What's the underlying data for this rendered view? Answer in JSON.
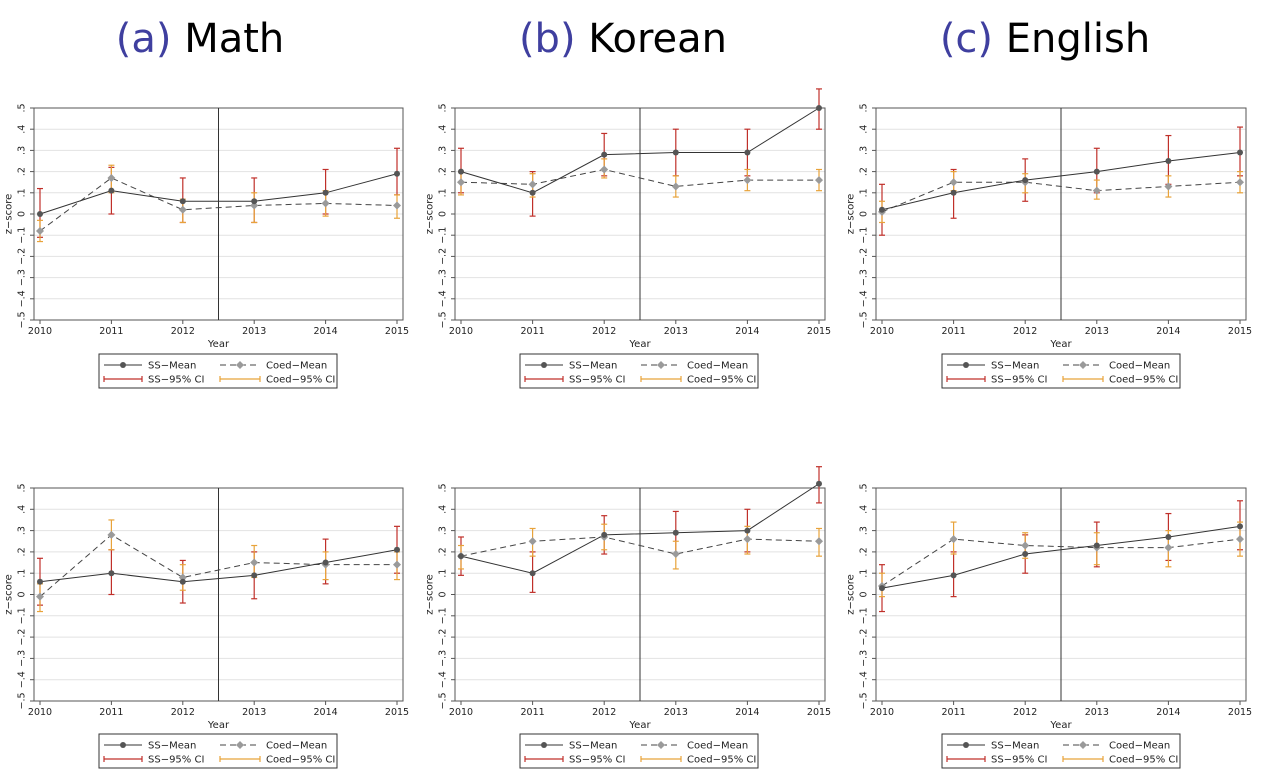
{
  "titles": [
    {
      "prefix": "(a)",
      "subject": "Math"
    },
    {
      "prefix": "(b)",
      "subject": "Korean"
    },
    {
      "prefix": "(c)",
      "subject": "English"
    }
  ],
  "colors": {
    "ss_mean": "#555555",
    "coed_mean": "#9a9a9a",
    "ss_ci": "#c0302a",
    "coed_ci": "#e8a33a",
    "grid": "#e2e2e2",
    "frame": "#555555"
  },
  "chart_data": [
    {
      "type": "line",
      "subject": "Math",
      "row": 1,
      "xlabel": "Year",
      "ylabel": "z−score",
      "x": [
        2010,
        2011,
        2012,
        2013,
        2014,
        2015
      ],
      "xlim": [
        2010,
        2015
      ],
      "ylim": [
        -0.5,
        0.5
      ],
      "yticks": [
        "−.5",
        "−.4",
        "−.3",
        "−.2",
        "−.1",
        "0",
        ".1",
        ".2",
        ".3",
        ".4",
        ".5"
      ],
      "grid": true,
      "cutoff_x": 2012.5,
      "legend_position": "bottom",
      "series": [
        {
          "name": "SS−Mean",
          "values": [
            0.0,
            0.11,
            0.06,
            0.06,
            0.1,
            0.19
          ],
          "ci_low": [
            -0.11,
            0.0,
            -0.04,
            -0.04,
            0.0,
            0.09
          ],
          "ci_high": [
            0.12,
            0.22,
            0.17,
            0.17,
            0.21,
            0.31
          ]
        },
        {
          "name": "Coed−Mean",
          "values": [
            -0.08,
            0.17,
            0.02,
            0.04,
            0.05,
            0.04
          ],
          "ci_low": [
            -0.13,
            0.1,
            -0.04,
            -0.04,
            -0.01,
            -0.02
          ],
          "ci_high": [
            -0.03,
            0.23,
            0.07,
            0.1,
            0.11,
            0.09
          ]
        }
      ],
      "legend": {
        "ss_mean": "SS−Mean",
        "coed_mean": "Coed−Mean",
        "ss_ci": "SS−95% CI",
        "coed_ci": "Coed−95% CI"
      }
    },
    {
      "type": "line",
      "subject": "Korean",
      "row": 1,
      "xlabel": "Year",
      "ylabel": "z−score",
      "x": [
        2010,
        2011,
        2012,
        2013,
        2014,
        2015
      ],
      "xlim": [
        2010,
        2015
      ],
      "ylim": [
        -0.5,
        0.5
      ],
      "yticks": [
        "−.5",
        "−.4",
        "−.3",
        "−.2",
        "−.1",
        "0",
        ".1",
        ".2",
        ".3",
        ".4",
        ".5"
      ],
      "grid": true,
      "cutoff_x": 2012.5,
      "legend_position": "bottom",
      "series": [
        {
          "name": "SS−Mean",
          "values": [
            0.2,
            0.1,
            0.28,
            0.29,
            0.29,
            0.5
          ],
          "ci_low": [
            0.1,
            -0.01,
            0.18,
            0.18,
            0.18,
            0.4
          ],
          "ci_high": [
            0.31,
            0.2,
            0.38,
            0.4,
            0.4,
            0.59
          ]
        },
        {
          "name": "Coed−Mean",
          "values": [
            0.15,
            0.14,
            0.21,
            0.13,
            0.16,
            0.16
          ],
          "ci_low": [
            0.09,
            0.08,
            0.17,
            0.08,
            0.11,
            0.11
          ],
          "ci_high": [
            0.2,
            0.19,
            0.26,
            0.18,
            0.21,
            0.21
          ]
        }
      ],
      "legend": {
        "ss_mean": "SS−Mean",
        "coed_mean": "Coed−Mean",
        "ss_ci": "SS−95% CI",
        "coed_ci": "Coed−95% CI"
      }
    },
    {
      "type": "line",
      "subject": "English",
      "row": 1,
      "xlabel": "Year",
      "ylabel": "z−score",
      "x": [
        2010,
        2011,
        2012,
        2013,
        2014,
        2015
      ],
      "xlim": [
        2010,
        2015
      ],
      "ylim": [
        -0.5,
        0.5
      ],
      "yticks": [
        "−.5",
        "−.4",
        "−.3",
        "−.2",
        "−.1",
        "0",
        ".1",
        ".2",
        ".3",
        ".4",
        ".5"
      ],
      "grid": true,
      "cutoff_x": 2012.5,
      "legend_position": "bottom",
      "series": [
        {
          "name": "SS−Mean",
          "values": [
            0.02,
            0.1,
            0.16,
            0.2,
            0.25,
            0.29
          ],
          "ci_low": [
            -0.1,
            -0.02,
            0.06,
            0.1,
            0.14,
            0.18
          ],
          "ci_high": [
            0.14,
            0.21,
            0.26,
            0.31,
            0.37,
            0.41
          ]
        },
        {
          "name": "Coed−Mean",
          "values": [
            0.01,
            0.15,
            0.15,
            0.11,
            0.13,
            0.15
          ],
          "ci_low": [
            -0.04,
            0.11,
            0.1,
            0.07,
            0.08,
            0.1
          ],
          "ci_high": [
            0.06,
            0.2,
            0.19,
            0.16,
            0.18,
            0.2
          ]
        }
      ],
      "legend": {
        "ss_mean": "SS−Mean",
        "coed_mean": "Coed−Mean",
        "ss_ci": "SS−95% CI",
        "coed_ci": "Coed−95% CI"
      }
    },
    {
      "type": "line",
      "subject": "Math",
      "row": 2,
      "xlabel": "Year",
      "ylabel": "z−score",
      "x": [
        2010,
        2011,
        2012,
        2013,
        2014,
        2015
      ],
      "xlim": [
        2010,
        2015
      ],
      "ylim": [
        -0.5,
        0.5
      ],
      "yticks": [
        "−.5",
        "−.4",
        "−.3",
        "−.2",
        "−.1",
        "0",
        ".1",
        ".2",
        ".3",
        ".4",
        ".5"
      ],
      "grid": true,
      "cutoff_x": 2012.5,
      "legend_position": "bottom",
      "series": [
        {
          "name": "SS−Mean",
          "values": [
            0.06,
            0.1,
            0.06,
            0.09,
            0.15,
            0.21
          ],
          "ci_low": [
            -0.05,
            0.0,
            -0.04,
            -0.02,
            0.05,
            0.1
          ],
          "ci_high": [
            0.17,
            0.21,
            0.16,
            0.2,
            0.26,
            0.32
          ]
        },
        {
          "name": "Coed−Mean",
          "values": [
            -0.01,
            0.28,
            0.08,
            0.15,
            0.14,
            0.14
          ],
          "ci_low": [
            -0.08,
            0.21,
            0.02,
            0.08,
            0.07,
            0.07
          ],
          "ci_high": [
            0.05,
            0.35,
            0.14,
            0.23,
            0.2,
            0.2
          ]
        }
      ],
      "legend": {
        "ss_mean": "SS−Mean",
        "coed_mean": "Coed−Mean",
        "ss_ci": "SS−95% CI",
        "coed_ci": "Coed−95% CI"
      }
    },
    {
      "type": "line",
      "subject": "Korean",
      "row": 2,
      "xlabel": "Year",
      "ylabel": "z−score",
      "x": [
        2010,
        2011,
        2012,
        2013,
        2014,
        2015
      ],
      "xlim": [
        2010,
        2015
      ],
      "ylim": [
        -0.5,
        0.5
      ],
      "yticks": [
        "−.5",
        "−.4",
        "−.3",
        "−.2",
        "−.1",
        "0",
        ".1",
        ".2",
        ".3",
        ".4",
        ".5"
      ],
      "grid": true,
      "cutoff_x": 2012.5,
      "legend_position": "bottom",
      "series": [
        {
          "name": "SS−Mean",
          "values": [
            0.18,
            0.1,
            0.28,
            0.29,
            0.3,
            0.52
          ],
          "ci_low": [
            0.09,
            0.01,
            0.19,
            0.19,
            0.2,
            0.43
          ],
          "ci_high": [
            0.27,
            0.2,
            0.37,
            0.39,
            0.4,
            0.6
          ]
        },
        {
          "name": "Coed−Mean",
          "values": [
            0.18,
            0.25,
            0.27,
            0.19,
            0.26,
            0.25
          ],
          "ci_low": [
            0.12,
            0.18,
            0.21,
            0.12,
            0.19,
            0.18
          ],
          "ci_high": [
            0.23,
            0.31,
            0.33,
            0.25,
            0.32,
            0.31
          ]
        }
      ],
      "legend": {
        "ss_mean": "SS−Mean",
        "coed_mean": "Coed−Mean",
        "ss_ci": "SS−95% CI",
        "coed_ci": "Coed−95% CI"
      }
    },
    {
      "type": "line",
      "subject": "English",
      "row": 2,
      "xlabel": "Year",
      "ylabel": "z−score",
      "x": [
        2010,
        2011,
        2012,
        2013,
        2014,
        2015
      ],
      "xlim": [
        2010,
        2015
      ],
      "ylim": [
        -0.5,
        0.5
      ],
      "yticks": [
        "−.5",
        "−.4",
        "−.3",
        "−.2",
        "−.1",
        "0",
        ".1",
        ".2",
        ".3",
        ".4",
        ".5"
      ],
      "grid": true,
      "cutoff_x": 2012.5,
      "legend_position": "bottom",
      "series": [
        {
          "name": "SS−Mean",
          "values": [
            0.03,
            0.09,
            0.19,
            0.23,
            0.27,
            0.32
          ],
          "ci_low": [
            -0.08,
            -0.01,
            0.1,
            0.13,
            0.16,
            0.21
          ],
          "ci_high": [
            0.14,
            0.2,
            0.28,
            0.34,
            0.38,
            0.44
          ]
        },
        {
          "name": "Coed−Mean",
          "values": [
            0.04,
            0.26,
            0.23,
            0.22,
            0.22,
            0.26
          ],
          "ci_low": [
            -0.01,
            0.19,
            0.17,
            0.14,
            0.13,
            0.18
          ],
          "ci_high": [
            0.1,
            0.34,
            0.29,
            0.29,
            0.3,
            0.34
          ]
        }
      ],
      "legend": {
        "ss_mean": "SS−Mean",
        "coed_mean": "Coed−Mean",
        "ss_ci": "SS−95% CI",
        "coed_ci": "Coed−95% CI"
      }
    }
  ]
}
